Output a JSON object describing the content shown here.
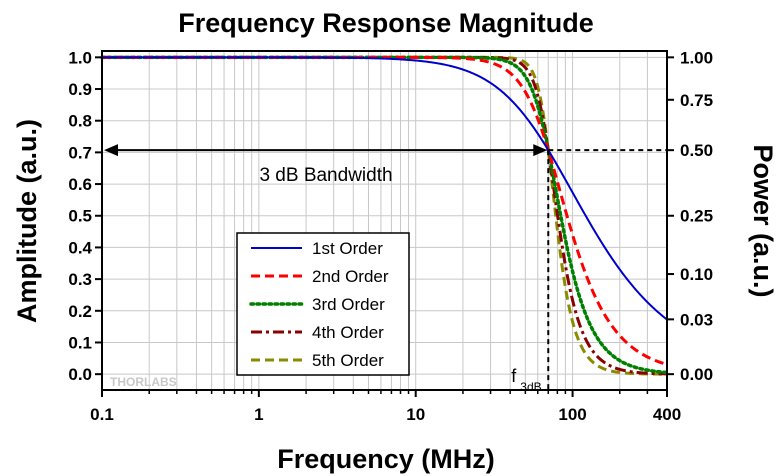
{
  "chart_data": {
    "type": "line",
    "title": "Frequency Response Magnitude",
    "xlabel": "Frequency (MHz)",
    "ylabel": "Amplitude (a.u.)",
    "y2label": "Power (a.u.)",
    "xscale": "log",
    "xlim": [
      0.1,
      400
    ],
    "ylim": [
      -0.05,
      1.02
    ],
    "grid": true,
    "x_ticks": [
      0.1,
      1,
      10,
      100,
      400
    ],
    "x_tick_labels": [
      "0.1",
      "1",
      "10",
      "100",
      "400"
    ],
    "y_ticks": [
      0.0,
      0.1,
      0.2,
      0.3,
      0.4,
      0.5,
      0.6,
      0.7,
      0.8,
      0.9,
      1.0
    ],
    "y_tick_labels": [
      "0.0",
      "0.1",
      "0.2",
      "0.3",
      "0.4",
      "0.5",
      "0.6",
      "0.7",
      "0.8",
      "0.9",
      "1.0"
    ],
    "y2_ticks": [
      {
        "label": "1.00",
        "amplitude": 1.0
      },
      {
        "label": "0.75",
        "amplitude": 0.866
      },
      {
        "label": "0.50",
        "amplitude": 0.707
      },
      {
        "label": "0.25",
        "amplitude": 0.5
      },
      {
        "label": "0.10",
        "amplitude": 0.316
      },
      {
        "label": "0.03",
        "amplitude": 0.173
      },
      {
        "label": "0.00",
        "amplitude": 0.0
      }
    ],
    "cutoff_frequency": 70,
    "cutoff_level": 0.707,
    "legend_position": "bottom-center",
    "series": [
      {
        "name": "1st Order",
        "order": 1,
        "color": "#0000cc",
        "dash": "solid"
      },
      {
        "name": "2nd Order",
        "order": 2,
        "color": "#ff0000",
        "dash": "dash"
      },
      {
        "name": "3rd Order",
        "order": 3,
        "color": "#008000",
        "dash": "dot"
      },
      {
        "name": "4th Order",
        "order": 4,
        "color": "#8b0000",
        "dash": "dashdot"
      },
      {
        "name": "5th Order",
        "order": 5,
        "color": "#8b8b00",
        "dash": "dash"
      }
    ],
    "annotations": {
      "bandwidth": "3 dB Bandwidth",
      "f_label": "f",
      "f_sub": "3dB"
    }
  },
  "watermark": "THORLABS"
}
